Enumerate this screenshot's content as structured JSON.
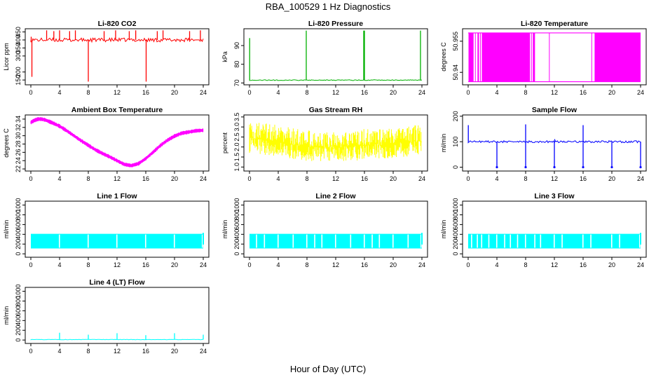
{
  "figure": {
    "title": "RBA_100529  1 Hz Diagnostics",
    "xlabel": "Hour of Day (UTC)"
  },
  "chart_data": [
    {
      "id": "co2",
      "type": "line",
      "title": "Li-820 CO2",
      "ylabel": "Licor ppm",
      "color": "#ff0000",
      "xlim": [
        0,
        24
      ],
      "x_ticks": [
        0,
        4,
        8,
        12,
        16,
        20,
        24
      ],
      "ylim": [
        120,
        470
      ],
      "y_ticks": [
        150,
        200,
        300,
        350,
        400,
        450
      ],
      "baseline": 400,
      "noise": 12,
      "spikes_up": [
        [
          0.05,
          420
        ],
        [
          2.2,
          460
        ],
        [
          3.2,
          455
        ],
        [
          4,
          460
        ],
        [
          5.4,
          455
        ],
        [
          6.2,
          460
        ],
        [
          10.2,
          455
        ],
        [
          11.8,
          460
        ],
        [
          13.7,
          455
        ],
        [
          14.6,
          460
        ],
        [
          17.6,
          455
        ],
        [
          18.4,
          460
        ],
        [
          22.1,
          455
        ],
        [
          23.6,
          460
        ]
      ],
      "spikes_down": [
        [
          0.15,
          170
        ],
        [
          8,
          140
        ],
        [
          16.05,
          140
        ]
      ]
    },
    {
      "id": "pressure",
      "type": "line",
      "title": "Li-820 Pressure",
      "ylabel": "kPa",
      "color": "#00b000",
      "xlim": [
        0,
        24
      ],
      "x_ticks": [
        0,
        4,
        8,
        12,
        16,
        20,
        24
      ],
      "ylim": [
        69,
        99
      ],
      "y_ticks": [
        70,
        80,
        90
      ],
      "baseline": 71.5,
      "noise": 0.2,
      "spikes_up": [
        [
          0.02,
          94
        ],
        [
          7.9,
          98
        ],
        [
          15.9,
          98
        ],
        [
          16,
          98
        ],
        [
          23.8,
          98
        ]
      ],
      "spikes_down": []
    },
    {
      "id": "li820temp",
      "type": "line",
      "title": "Li-820 Temperature",
      "ylabel": "degrees C",
      "color": "#ff00ff",
      "xlim": [
        0,
        24
      ],
      "x_ticks": [
        0,
        4,
        8,
        12,
        16,
        20,
        24
      ],
      "ylim": [
        50.934,
        50.961
      ],
      "y_ticks": [
        50.94,
        50.955
      ],
      "levels": [
        50.9355,
        50.959
      ],
      "dense_bands": [
        [
          0.05,
          0.75
        ],
        [
          1.3,
          1.5
        ],
        [
          1.9,
          8.6
        ],
        [
          9.0,
          9.3
        ],
        [
          17.6,
          24.0
        ]
      ],
      "sparse_lines": [
        1.0,
        1.7,
        8.8,
        11.3,
        17.2
      ]
    },
    {
      "id": "ambient",
      "type": "line",
      "title": "Ambient Box Temperature",
      "ylabel": "degrees C",
      "color": "#ff00ff",
      "xlim": [
        0,
        24
      ],
      "x_ticks": [
        0,
        4,
        8,
        12,
        16,
        20,
        24
      ],
      "ylim": [
        21.5,
        35
      ],
      "y_ticks": [
        22,
        24,
        26,
        28,
        30,
        32,
        34
      ],
      "x": [
        0,
        0.5,
        1,
        1.5,
        2,
        3,
        4,
        5,
        6,
        7,
        8,
        9,
        10,
        11,
        12,
        13,
        14,
        15,
        16,
        17,
        18,
        19,
        20,
        21,
        22,
        23,
        24
      ],
      "y": [
        33.2,
        33.7,
        34.0,
        34.0,
        33.8,
        33.1,
        32.3,
        31.2,
        30.0,
        28.8,
        27.7,
        26.6,
        25.7,
        24.9,
        24.0,
        23.1,
        22.8,
        23.3,
        24.5,
        26.0,
        27.6,
        28.9,
        29.9,
        30.6,
        30.9,
        31.2,
        31.3
      ],
      "noise": 0.5
    },
    {
      "id": "rh",
      "type": "line",
      "title": "Gas Stream RH",
      "ylabel": "percent",
      "color": "#ffff00",
      "xlim": [
        0,
        24
      ],
      "x_ticks": [
        0,
        4,
        8,
        12,
        16,
        20,
        24
      ],
      "ylim": [
        0.8,
        3.6
      ],
      "y_ticks": [
        1.0,
        1.5,
        2.0,
        2.5,
        3.0,
        3.5
      ],
      "x": [
        0,
        2,
        4,
        6,
        8,
        10,
        12,
        14,
        16,
        18,
        20,
        22,
        24
      ],
      "upper": [
        3.3,
        3.2,
        3.1,
        2.95,
        2.85,
        2.8,
        2.75,
        2.8,
        2.9,
        2.95,
        3.0,
        3.05,
        3.1
      ],
      "lower": [
        1.7,
        1.6,
        1.5,
        1.4,
        1.3,
        1.3,
        1.3,
        1.3,
        1.35,
        1.4,
        1.45,
        1.5,
        1.55
      ]
    },
    {
      "id": "sampleflow",
      "type": "line",
      "title": "Sample Flow",
      "ylabel": "ml/min",
      "color": "#0000ff",
      "xlim": [
        0,
        24
      ],
      "x_ticks": [
        0,
        4,
        8,
        12,
        16,
        20,
        24
      ],
      "ylim": [
        -15,
        205
      ],
      "y_ticks": [
        0,
        100,
        200
      ],
      "baseline": 100,
      "noise": 4,
      "spikes_up": [
        [
          0.02,
          165
        ],
        [
          8,
          168
        ],
        [
          16,
          165
        ],
        [
          12.05,
          110
        ]
      ],
      "spikes_down": [
        [
          4,
          0
        ],
        [
          8,
          0
        ],
        [
          12,
          0
        ],
        [
          16,
          0
        ],
        [
          20,
          0
        ],
        [
          24,
          0
        ]
      ]
    },
    {
      "id": "line1",
      "type": "line",
      "title": "Line 1 Flow",
      "ylabel": "ml/min",
      "color": "#00ffff",
      "xlim": [
        0,
        24
      ],
      "x_ticks": [
        0,
        4,
        8,
        12,
        16,
        20,
        24
      ],
      "ylim": [
        -70,
        1080
      ],
      "y_ticks": [
        0,
        200,
        400,
        600,
        800,
        1000
      ],
      "band": [
        110,
        410
      ],
      "gaps": [
        3.9,
        7.9,
        11.9,
        15.9,
        19.9,
        23.8
      ]
    },
    {
      "id": "line2",
      "type": "line",
      "title": "Line 2 Flow",
      "ylabel": "ml/min",
      "color": "#00ffff",
      "xlim": [
        0,
        24
      ],
      "x_ticks": [
        0,
        4,
        8,
        12,
        16,
        20,
        24
      ],
      "ylim": [
        -70,
        1080
      ],
      "y_ticks": [
        0,
        200,
        400,
        600,
        800,
        1000
      ],
      "band": [
        110,
        410
      ],
      "gaps": [
        0.9,
        2.0,
        3.9,
        6.0,
        7.9,
        9.0,
        10.0,
        11.9,
        14.0,
        15.9,
        17.0,
        18.0,
        19.9,
        22.0,
        23.8
      ]
    },
    {
      "id": "line3",
      "type": "line",
      "title": "Line 3 Flow",
      "ylabel": "ml/min",
      "color": "#00ffff",
      "xlim": [
        0,
        24
      ],
      "x_ticks": [
        0,
        4,
        8,
        12,
        16,
        20,
        24
      ],
      "ylim": [
        -70,
        1080
      ],
      "y_ticks": [
        0,
        200,
        400,
        600,
        800,
        1000
      ],
      "band": [
        110,
        410
      ],
      "gaps": [
        0.4,
        1.2,
        1.8,
        2.8,
        3.9,
        5.0,
        5.8,
        6.8,
        7.9,
        9.2,
        10.0,
        11.9,
        13.0,
        15.9,
        17.0,
        19.9,
        21.0,
        23.8
      ]
    },
    {
      "id": "line4",
      "type": "line",
      "title": "Line 4 (LT) Flow",
      "ylabel": "ml/min",
      "color": "#00ffff",
      "xlim": [
        0,
        24
      ],
      "x_ticks": [
        0,
        4,
        8,
        12,
        16,
        20,
        24
      ],
      "ylim": [
        -70,
        1080
      ],
      "y_ticks": [
        0,
        200,
        400,
        600,
        800,
        1000
      ],
      "baseline": 10,
      "noise": 4,
      "spikes_up": [
        [
          4,
          150
        ],
        [
          8,
          110
        ],
        [
          12,
          140
        ],
        [
          16,
          100
        ],
        [
          20,
          140
        ],
        [
          24,
          110
        ]
      ],
      "spikes_down": []
    }
  ]
}
